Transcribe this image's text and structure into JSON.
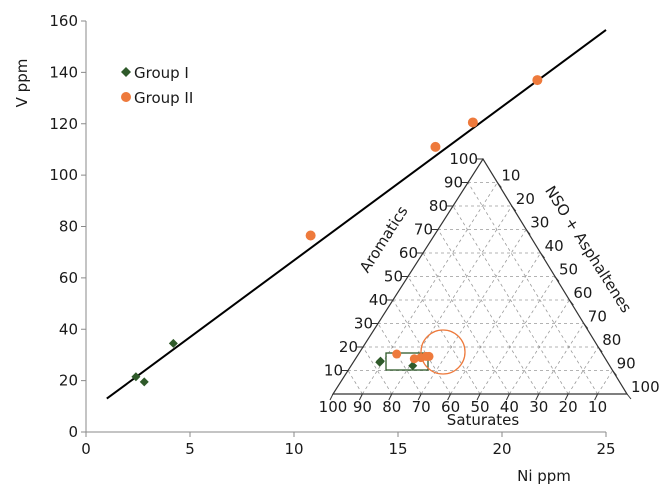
{
  "chart_data": {
    "type": "scatter",
    "xlabel": "Ni ppm",
    "ylabel": "V ppm",
    "xlim": [
      0,
      25
    ],
    "ylim": [
      0,
      160
    ],
    "x_ticks": [
      "0",
      "5",
      "10",
      "15",
      "20",
      "25"
    ],
    "y_ticks": [
      "0",
      "20",
      "40",
      "60",
      "80",
      "100",
      "120",
      "140",
      "160"
    ],
    "legend_placement": "top-left",
    "grid": false,
    "series": [
      {
        "name": "Group I",
        "marker": "diamond",
        "color": "#2f5a2a",
        "x": [
          2.4,
          2.8,
          4.2
        ],
        "y": [
          21.5,
          19.5,
          34.5
        ]
      },
      {
        "name": "Group II",
        "marker": "circle",
        "color": "#ee7a3c",
        "x": [
          10.8,
          16.8,
          18.6,
          21.7
        ],
        "y": [
          76.5,
          111,
          120.5,
          137
        ]
      }
    ],
    "trendline": {
      "color": "#000000",
      "x": [
        1,
        25
      ],
      "y": [
        13,
        156.5
      ]
    },
    "inset_ternary": {
      "type": "ternary",
      "bottom_axis_label": "Saturates",
      "left_axis_label": "Aromatics",
      "right_axis_label": "NSO + Asphaltenes",
      "bottom_ticks": [
        "100",
        "90",
        "80",
        "70",
        "60",
        "50",
        "40",
        "30",
        "20",
        "10"
      ],
      "left_ticks": [
        "10",
        "20",
        "30",
        "40",
        "50",
        "60",
        "70",
        "80",
        "90",
        "100"
      ],
      "right_ticks": [
        "10",
        "20",
        "30",
        "40",
        "50",
        "60",
        "70",
        "80",
        "90",
        "100"
      ],
      "group1_box_color": "#2f5a2a",
      "group2_circle_color": "#ee7a3c",
      "points": [
        {
          "series": "Group I",
          "saturates": 77,
          "aromatics": 14,
          "nso_asphaltenes": 9
        },
        {
          "series": "Group I",
          "saturates": 77.5,
          "aromatics": 13.5,
          "nso_asphaltenes": 9
        },
        {
          "series": "Group I",
          "saturates": 67,
          "aromatics": 12,
          "nso_asphaltenes": 21
        },
        {
          "series": "Group II",
          "saturates": 70,
          "aromatics": 17,
          "nso_asphaltenes": 13
        },
        {
          "series": "Group II",
          "saturates": 65,
          "aromatics": 15,
          "nso_asphaltenes": 20
        },
        {
          "series": "Group II",
          "saturates": 62.5,
          "aromatics": 15.5,
          "nso_asphaltenes": 22
        },
        {
          "series": "Group II",
          "saturates": 60.5,
          "aromatics": 16,
          "nso_asphaltenes": 23.5
        },
        {
          "series": "Group II",
          "saturates": 59.5,
          "aromatics": 16,
          "nso_asphaltenes": 24.5
        }
      ]
    }
  }
}
